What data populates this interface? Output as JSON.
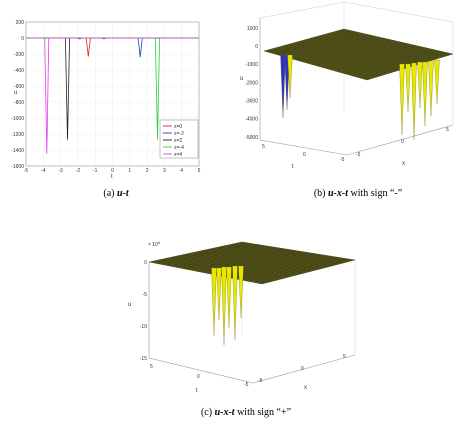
{
  "captions": {
    "a": {
      "tag": "(a)",
      "text": "u-t",
      "rest": ""
    },
    "b": {
      "tag": "(b)",
      "text": "u-x-t",
      "rest": " with sign “-”"
    },
    "c": {
      "tag": "(c)",
      "text": "u-x-t",
      "rest": " with sign “+”"
    }
  },
  "chart_data": [
    {
      "type": "line",
      "xlabel": "t",
      "ylabel": "u",
      "xlim": [
        -5,
        5
      ],
      "ylim": [
        -1600,
        200
      ],
      "xticks": [
        "-5",
        "-4",
        "-3",
        "-2",
        "-1",
        "0",
        "1",
        "2",
        "3",
        "4",
        "5"
      ],
      "yticks": [
        "200",
        "0",
        "-200",
        "-400",
        "-600",
        "-800",
        "-1000",
        "-1200",
        "-1400",
        "-1600"
      ],
      "legend_position": "bottom-right",
      "series": [
        {
          "name": "x=0",
          "color": "#d62728",
          "spikes": [
            {
              "t": -1.4,
              "depth": -230
            }
          ]
        },
        {
          "name": "x=-2",
          "color": "#1f3fbf",
          "spikes": [
            {
              "t": -0.5,
              "depth": -10
            },
            {
              "t": 1.6,
              "depth": -240
            }
          ]
        },
        {
          "name": "x=2",
          "color": "#222222",
          "spikes": [
            {
              "t": -2.6,
              "depth": -1270
            },
            {
              "t": -1.9,
              "depth": -10
            }
          ]
        },
        {
          "name": "x=-4",
          "color": "#2ecc40",
          "spikes": [
            {
              "t": 2.6,
              "depth": -1270
            }
          ]
        },
        {
          "name": "x=4",
          "color": "#e040e0",
          "spikes": [
            {
              "t": -3.8,
              "depth": -1450
            }
          ]
        }
      ]
    },
    {
      "type": "surface",
      "xlabel": "x",
      "ylabel": "t",
      "zlabel": "u",
      "zlim": [
        -5000,
        1000
      ],
      "zticks": [
        "1000",
        "0",
        "-1000",
        "-2000",
        "-3000",
        "-4000",
        "-5000"
      ],
      "xticks": [
        "5",
        "0",
        "-5"
      ],
      "tticks": [
        "5",
        "0",
        "-5"
      ],
      "plane_color": "#5a5a1e",
      "spike_color": "#e8e800"
    },
    {
      "type": "surface",
      "xlabel": "x",
      "ylabel": "t",
      "zlabel": "u",
      "z_multiplier": "× 10",
      "z_multiplier_exp": "4",
      "zlim": [
        -15,
        0
      ],
      "zticks": [
        "0",
        "-5",
        "-10",
        "-15"
      ],
      "xticks": [
        "5",
        "0",
        "-5"
      ],
      "tticks": [
        "5",
        "0",
        "-5"
      ],
      "plane_color": "#5a5a1e",
      "spike_color": "#e8e800"
    }
  ]
}
